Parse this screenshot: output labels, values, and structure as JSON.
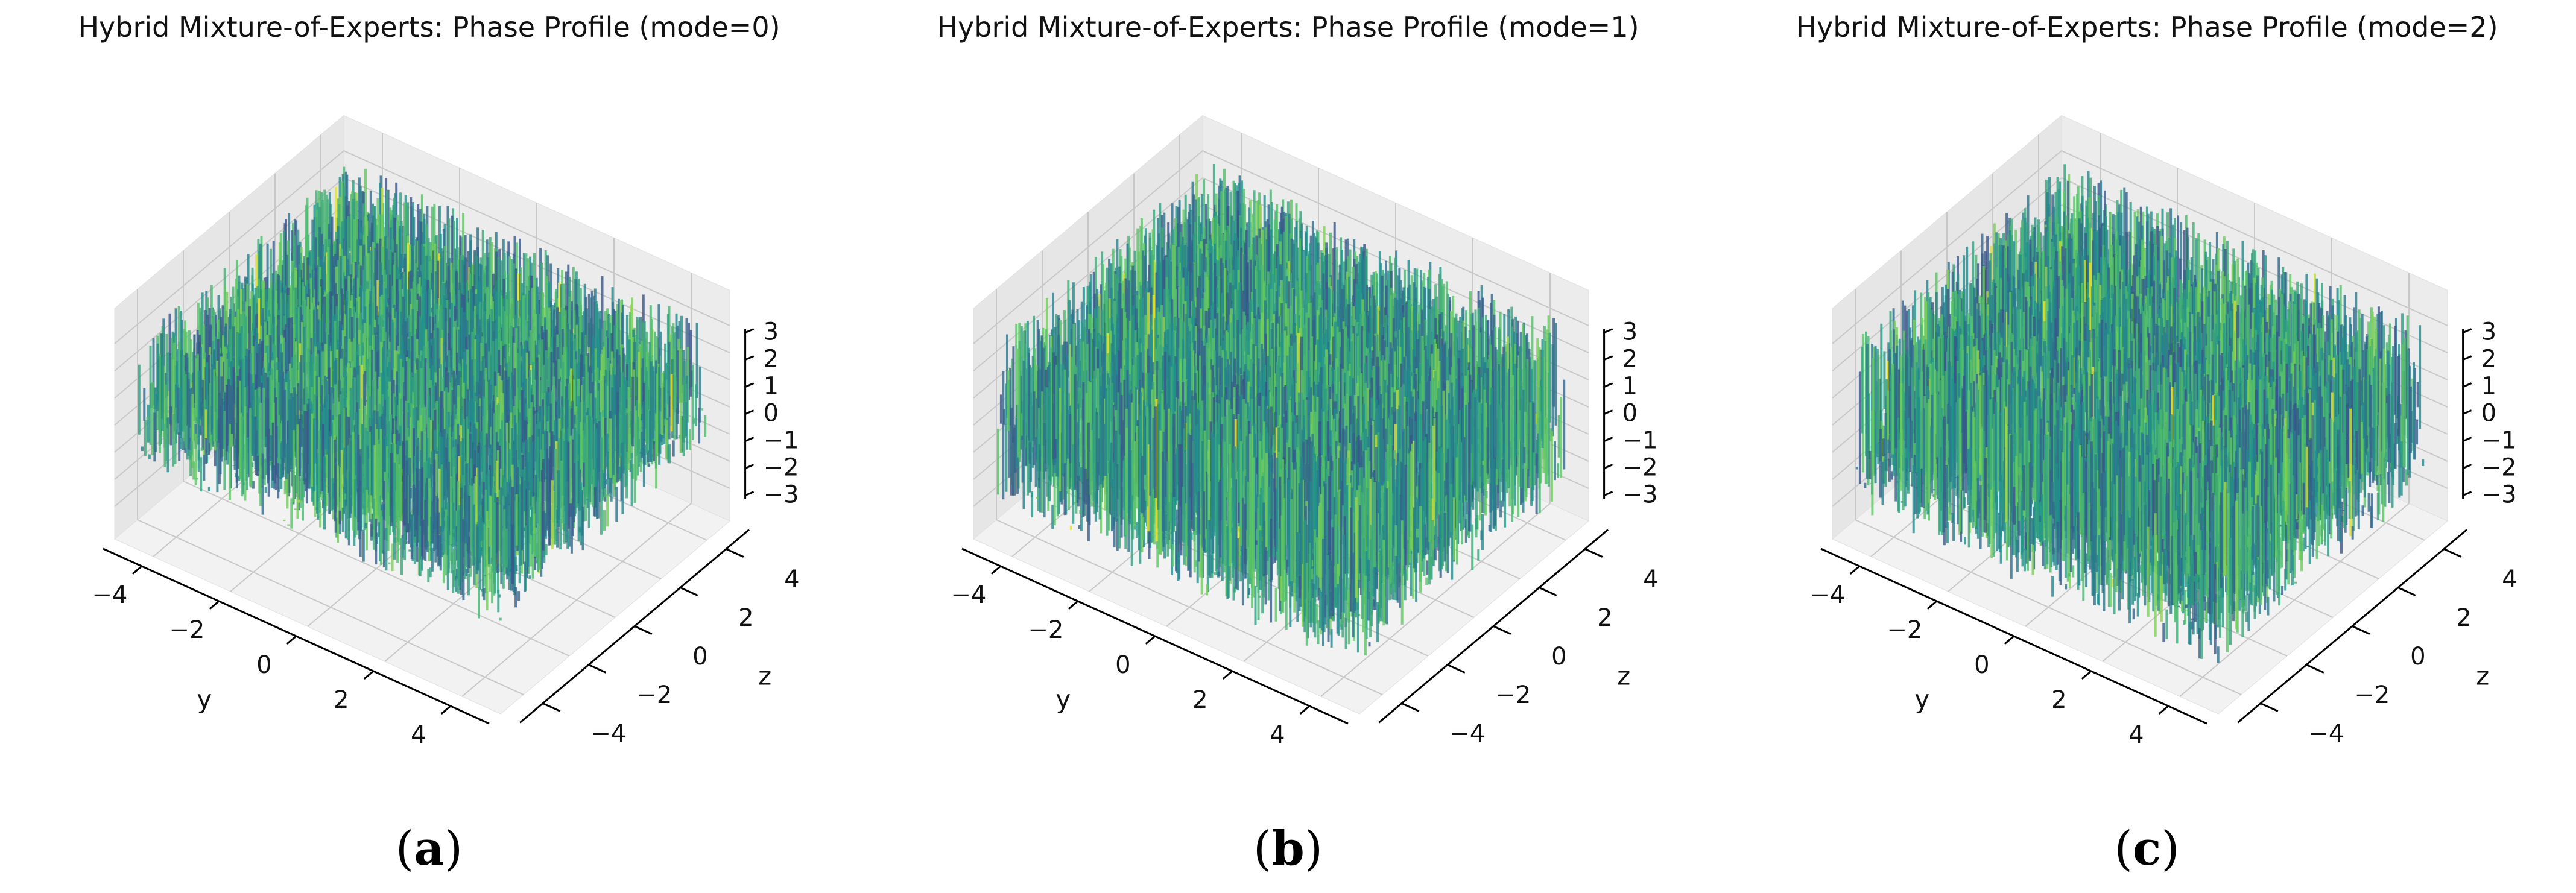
{
  "chart_data": [
    {
      "type": "surface3d",
      "title": "Hybrid Mixture-of-Experts: Phase Profile (mode=0)",
      "caption": "a",
      "ylabel": "y",
      "zlabel": "z",
      "y_ticks": [
        "−4",
        "−2",
        "0",
        "2",
        "4"
      ],
      "z_ticks": [
        "−4",
        "−2",
        "0",
        "2",
        "4"
      ],
      "value_ticks": [
        "−3",
        "−2",
        "−1",
        "0",
        "1",
        "2",
        "3"
      ],
      "y_range": [
        -5,
        5
      ],
      "z_range": [
        -5,
        5
      ],
      "value_range": [
        -3.14,
        3.14
      ],
      "colormap": "viridis",
      "colors": [
        "#440154",
        "#3b528b",
        "#21918c",
        "#5ec962",
        "#fde725"
      ],
      "surface_band": [
        -1.5,
        3.0
      ],
      "noise": "high-frequency phase noise"
    },
    {
      "type": "surface3d",
      "title": "Hybrid Mixture-of-Experts: Phase Profile (mode=1)",
      "caption": "b",
      "ylabel": "y",
      "zlabel": "z",
      "y_ticks": [
        "−4",
        "−2",
        "0",
        "2",
        "4"
      ],
      "z_ticks": [
        "−4",
        "−2",
        "0",
        "2",
        "4"
      ],
      "value_ticks": [
        "−3",
        "−2",
        "−1",
        "0",
        "1",
        "2",
        "3"
      ],
      "y_range": [
        -5,
        5
      ],
      "z_range": [
        -5,
        5
      ],
      "value_range": [
        -3.14,
        3.14
      ],
      "colormap": "viridis",
      "colors": [
        "#440154",
        "#3b528b",
        "#21918c",
        "#5ec962",
        "#fde725"
      ],
      "surface_band": [
        -3.14,
        3.14
      ],
      "noise": "high-frequency phase noise"
    },
    {
      "type": "surface3d",
      "title": "Hybrid Mixture-of-Experts: Phase Profile (mode=2)",
      "caption": "c",
      "ylabel": "y",
      "zlabel": "z",
      "y_ticks": [
        "−4",
        "−2",
        "0",
        "2",
        "4"
      ],
      "z_ticks": [
        "−4",
        "−2",
        "0",
        "2",
        "4"
      ],
      "value_ticks": [
        "−3",
        "−2",
        "−1",
        "0",
        "1",
        "2",
        "3"
      ],
      "y_range": [
        -5,
        5
      ],
      "z_range": [
        -5,
        5
      ],
      "value_range": [
        -3.14,
        3.14
      ],
      "colormap": "viridis",
      "colors": [
        "#440154",
        "#3b528b",
        "#21918c",
        "#5ec962",
        "#fde725"
      ],
      "surface_band": [
        -3.14,
        3.14
      ],
      "noise": "high-frequency phase noise"
    }
  ]
}
